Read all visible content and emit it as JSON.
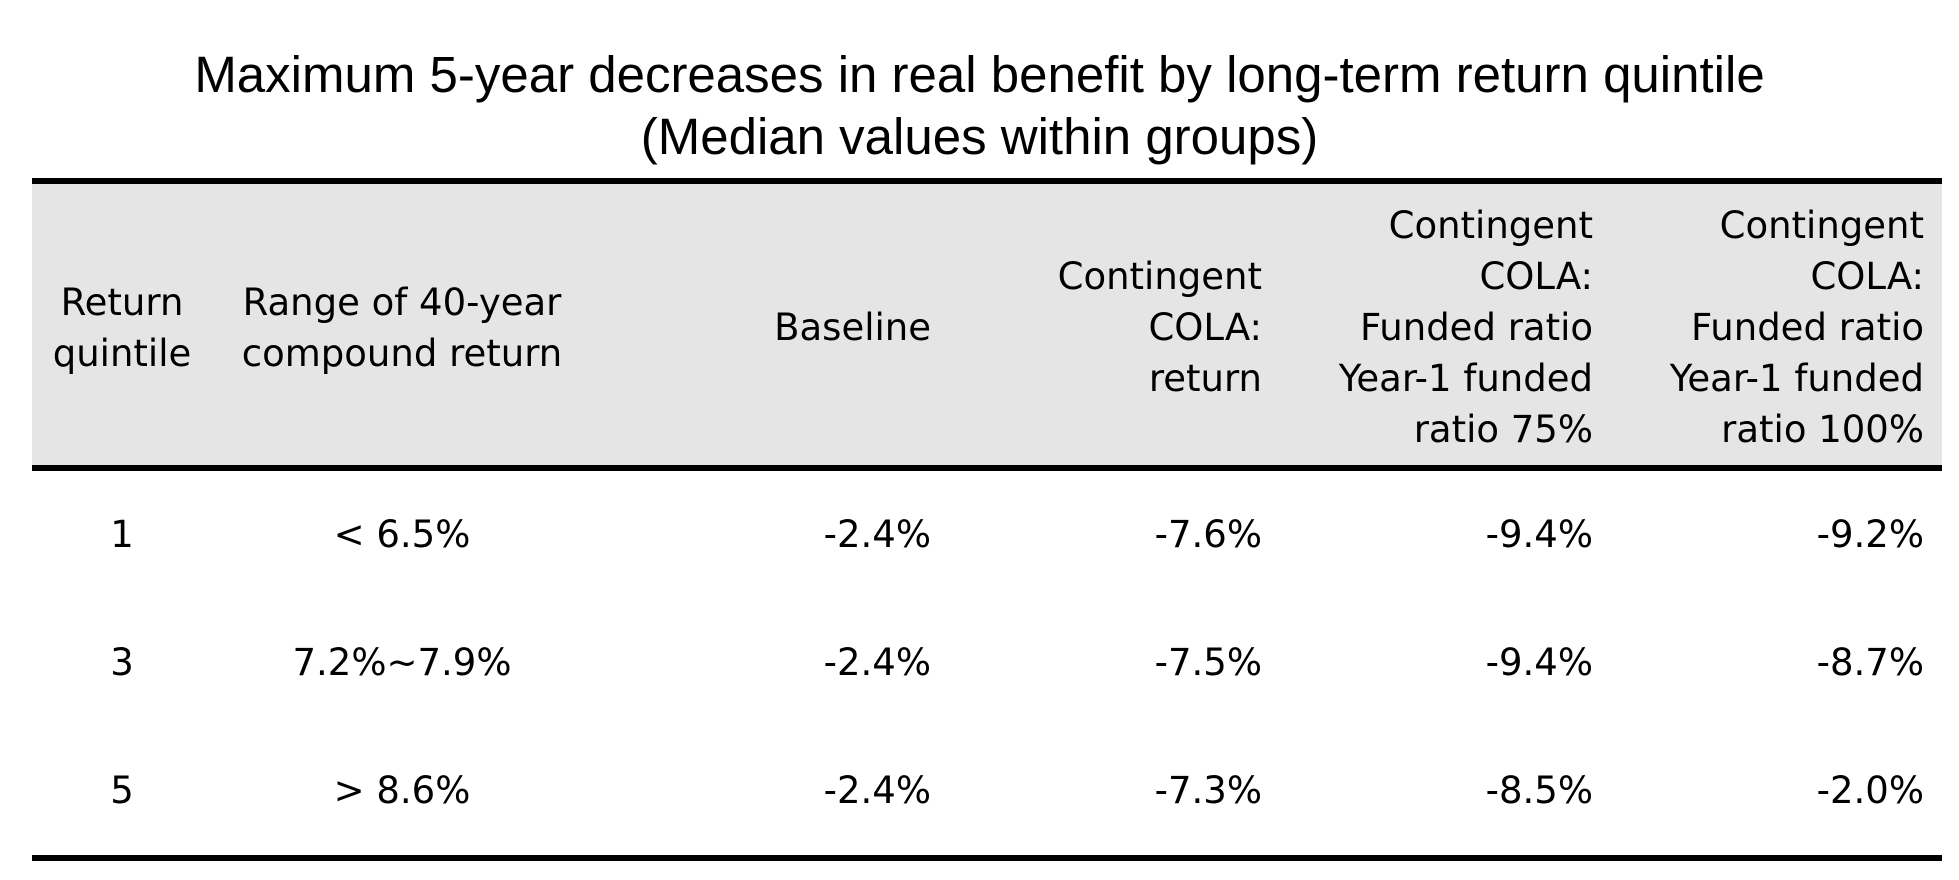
{
  "chart_data": {
    "type": "table",
    "title": "Maximum 5-year decreases in real benefit by long-term return quintile",
    "subtitle": "(Median values within groups)",
    "columns": [
      {
        "lines": [
          "Return",
          "quintile"
        ],
        "align": "c",
        "width": 180
      },
      {
        "lines": [
          "Range of 40-year",
          "compound return"
        ],
        "align": "c",
        "width": 380
      },
      {
        "lines": [
          "Baseline"
        ],
        "align": "r",
        "width": 357
      },
      {
        "lines": [
          "Contingent",
          "COLA:",
          "return"
        ],
        "align": "r",
        "width": 331
      },
      {
        "lines": [
          "Contingent",
          "COLA:",
          "Funded ratio",
          "Year-1 funded",
          "ratio 75%"
        ],
        "align": "r",
        "width": 331
      },
      {
        "lines": [
          "Contingent",
          "COLA:",
          "Funded ratio",
          "Year-1 funded",
          "ratio 100%"
        ],
        "align": "r",
        "width": 331
      }
    ],
    "rows": [
      [
        "1",
        "< 6.5%",
        "-2.4%",
        "-7.6%",
        "-9.4%",
        "-9.2%"
      ],
      [
        "3",
        "7.2%~7.9%",
        "-2.4%",
        "-7.5%",
        "-9.4%",
        "-8.7%"
      ],
      [
        "5",
        "> 8.6%",
        "-2.4%",
        "-7.3%",
        "-8.5%",
        "-2.0%"
      ]
    ]
  },
  "colors": {
    "header_background": "#e5e5e5",
    "rule": "#000000",
    "text": "#000000",
    "page_background": "#ffffff"
  }
}
